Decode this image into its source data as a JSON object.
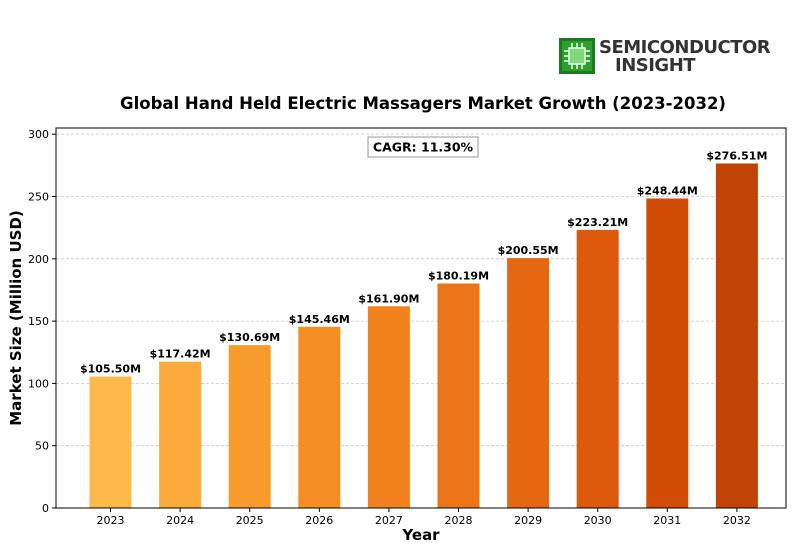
{
  "brand": {
    "line1": "SEMICONDUCTOR",
    "line2": "INSIGHT",
    "icon": "chip-icon",
    "color": "#333333",
    "icon_color": "#2e9e2e"
  },
  "chart_data": {
    "type": "bar",
    "title": "Global Hand Held Electric Massagers Market Growth (2023-2032)",
    "xlabel": "Year",
    "ylabel": "Market Size (Million USD)",
    "categories": [
      "2023",
      "2024",
      "2025",
      "2026",
      "2027",
      "2028",
      "2029",
      "2030",
      "2031",
      "2032"
    ],
    "values": [
      105.5,
      117.42,
      130.69,
      145.46,
      161.9,
      180.19,
      200.55,
      223.21,
      248.44,
      276.51
    ],
    "data_labels": [
      "$105.50M",
      "$117.42M",
      "$130.69M",
      "$145.46M",
      "$161.90M",
      "$180.19M",
      "$200.55M",
      "$223.21M",
      "$248.44M",
      "$276.51M"
    ],
    "ylim": [
      0,
      305
    ],
    "yticks": [
      0,
      50,
      100,
      150,
      200,
      250,
      300
    ],
    "annotation": "CAGR: 11.30%",
    "grid": "horizontal dashed",
    "bar_colors": [
      "#fdb94a",
      "#fbab3c",
      "#f89c2e",
      "#f58f25",
      "#f1821e",
      "#ec7418",
      "#e56712",
      "#dd5a0c",
      "#d14c06",
      "#c14404"
    ]
  }
}
